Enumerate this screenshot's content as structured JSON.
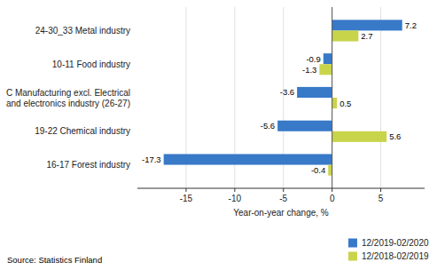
{
  "chart_data": {
    "type": "bar",
    "orientation": "horizontal",
    "categories": [
      "16-17 Forest industry",
      "19-22 Chemical industry",
      "C Manufacturing excl. Electrical\nand electronics industry (26-27)",
      "10-11 Food industry",
      "24-30_33 Metal industry"
    ],
    "series": [
      {
        "name": "12/2019-02/2020",
        "color": "#3879C8",
        "values": [
          -17.3,
          -5.6,
          -3.6,
          -0.9,
          7.2
        ]
      },
      {
        "name": "12/2018-02/2019",
        "color": "#C8D44A",
        "values": [
          -0.4,
          5.6,
          0.5,
          -1.3,
          2.7
        ]
      }
    ],
    "x_label": "Year-on-year change, %",
    "xlim": [
      -20,
      9.5
    ],
    "xticks": [
      -15,
      -10,
      -5,
      0,
      5
    ],
    "grid": true,
    "data_labels": true,
    "legend": "lower right",
    "annotations": [
      "Source: Statistics Finland"
    ]
  }
}
